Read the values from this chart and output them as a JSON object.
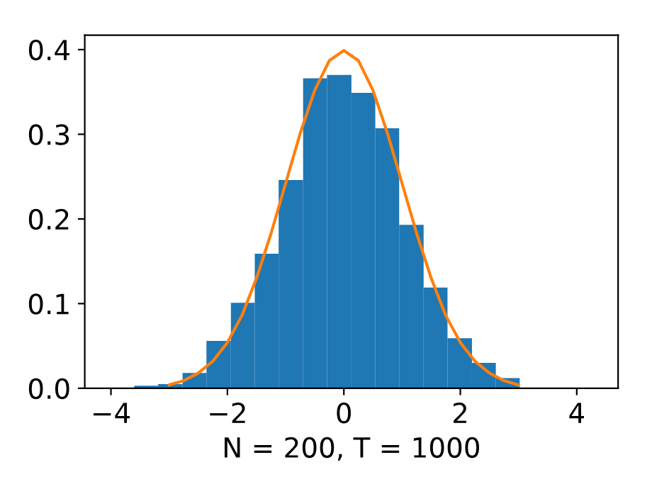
{
  "chart_data": {
    "type": "histogram",
    "xlabel": "N = 200, T = 1000",
    "bins": [
      -3.6,
      -3.19,
      -2.77,
      -2.36,
      -1.94,
      -1.53,
      -1.12,
      -0.7,
      -0.29,
      0.13,
      0.54,
      0.95,
      1.37,
      1.78,
      2.2,
      2.61,
      3.02
    ],
    "values": [
      0.003,
      0.005,
      0.018,
      0.056,
      0.101,
      0.159,
      0.246,
      0.366,
      0.37,
      0.349,
      0.307,
      0.193,
      0.119,
      0.059,
      0.03,
      0.012
    ],
    "color": "#1f77b4",
    "series": [
      {
        "type": "line",
        "color": "#ff7f0e",
        "x": [
          -3,
          -2.75,
          -2.5,
          -2.25,
          -2,
          -1.75,
          -1.5,
          -1.25,
          -1,
          -0.75,
          -0.5,
          -0.25,
          0,
          0.25,
          0.5,
          0.75,
          1,
          1.25,
          1.5,
          1.75,
          2,
          2.25,
          2.5,
          2.75,
          3
        ],
        "values": [
          0.004,
          0.009,
          0.018,
          0.032,
          0.054,
          0.086,
          0.13,
          0.183,
          0.242,
          0.301,
          0.352,
          0.387,
          0.399,
          0.387,
          0.352,
          0.301,
          0.242,
          0.183,
          0.13,
          0.086,
          0.054,
          0.032,
          0.018,
          0.009,
          0.004
        ]
      }
    ],
    "xlim": [
      -4.45,
      4.71
    ],
    "ylim": [
      0,
      0.417
    ],
    "xticks": [
      {
        "value": -4,
        "label": "−4"
      },
      {
        "value": -2,
        "label": "−2"
      },
      0,
      2,
      4
    ],
    "yticks": [
      {
        "value": 0,
        "label": "0.0"
      },
      0.1,
      0.2,
      0.3,
      0.4
    ],
    "grid": false,
    "legend": false
  }
}
